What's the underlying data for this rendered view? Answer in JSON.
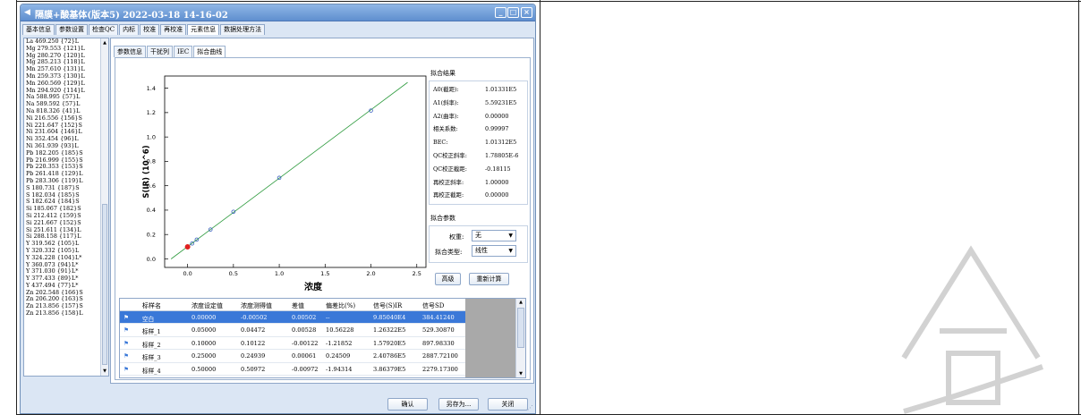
{
  "window": {
    "title": "隔膜+酸基体(版本5) 2022-03-18 14-16-02",
    "title_icon": "app-icon",
    "controls": [
      "minimize",
      "maximize",
      "close"
    ]
  },
  "top_tabs": [
    {
      "label": "基本信息"
    },
    {
      "label": "参数设置"
    },
    {
      "label": "检查QC"
    },
    {
      "label": "内标"
    },
    {
      "label": "校准"
    },
    {
      "label": "再校准"
    },
    {
      "label": "元素信息",
      "active": true
    },
    {
      "label": "数据处理方法"
    }
  ],
  "element_list": {
    "selected_index": 48,
    "items": [
      "La 469.250 {72}L",
      "Mg 279.553 {121}L",
      "Mg 280.270 {120}L",
      "Mg 285.213 {118}L",
      "Mn 257.610 {131}L",
      "Mn 259.373 {130}L",
      "Mn 260.569 {129}L",
      "Mn 294.920 {114}L",
      "Na 588.995 {57}L",
      "Na 589.592 {57}L",
      "Na 818.326 {41}L",
      "Ni 216.556 {156}S",
      "Ni 221.647 {152}S",
      "Ni 231.604 {146}L",
      "Ni 352.454 {96}L",
      "Ni 361.939 {93}L",
      "Pb 182.205 {185}S",
      "Pb 216.999 {155}S",
      "Pb 220.353 {153}S",
      "Pb 261.418 {129}L",
      "Pb 283.306 {119}L",
      "S 180.731 {187}S",
      "S 182.034 {185}S",
      "S 182.624 {184}S",
      "Si 185.067 {182}S",
      "Si 212.412 {159}S",
      "Si 221.667 {152}S",
      "Si 251.611 {134}L",
      "Si 288.158 {117}L",
      "Y 319.562 {105}L",
      "Y 320.332 {105}L",
      "Y 324.228 {104}L*",
      "Y 360.073 {94}L*",
      "Y 371.030 {91}L*",
      "Y 377.433 {89}L*",
      "Y 437.494 {77}L*",
      "Zn 202.548 {166}S",
      "Zn 206.200 {163}S",
      "Zn 213.856 {157}S",
      "Zn 213.856 {158}L"
    ]
  },
  "sub_tabs": [
    {
      "label": "参数信息"
    },
    {
      "label": "干扰列"
    },
    {
      "label": "IEC"
    },
    {
      "label": "拟合曲线",
      "active": true
    }
  ],
  "chart_data": {
    "type": "scatter",
    "title": "",
    "xlabel": "浓度",
    "ylabel": "S(IR) (10^6)",
    "xlim": [
      -0.25,
      2.6
    ],
    "ylim": [
      -0.07,
      1.5
    ],
    "x_ticks": [
      "0.0",
      "0.5",
      "1.0",
      "1.5",
      "2.0",
      "2.5"
    ],
    "x_tick_values": [
      0,
      0.5,
      1.0,
      1.5,
      2.0,
      2.5
    ],
    "y_ticks": [
      "0.0",
      "0.2",
      "0.4",
      "0.6",
      "0.8",
      "1.0",
      "1.2",
      "1.4"
    ],
    "y_tick_values": [
      0,
      0.2,
      0.4,
      0.6,
      0.8,
      1.0,
      1.2,
      1.4
    ],
    "grid": false,
    "fit_line": {
      "x": [
        -0.18,
        2.4
      ],
      "y": [
        -0.0003,
        1.4477
      ],
      "color": "#2e9b3e"
    },
    "series": [
      {
        "x": [
          0.05,
          0.1,
          0.25,
          0.5,
          1.0,
          2.0
        ],
        "y": [
          0.1263,
          0.1579,
          0.2408,
          0.3864,
          0.665,
          1.2166
        ],
        "color": "#3a5fbf",
        "marker": "open-circle"
      },
      {
        "x": [
          0.0
        ],
        "y": [
          0.0985
        ],
        "color": "#e02020",
        "marker": "filled-circle"
      }
    ]
  },
  "fit_results": {
    "title": "拟合结果",
    "rows": [
      {
        "label": "A0(截距):",
        "value": "1.01331E5"
      },
      {
        "label": "A1(斜率):",
        "value": "5.59231E5"
      },
      {
        "label": "A2(曲率):",
        "value": "0.00000"
      },
      {
        "label": "相关系数:",
        "value": "0.99997"
      },
      {
        "label": "BEC:",
        "value": "1.01312E5"
      },
      {
        "label": "QC校正斜率:",
        "value": "1.78805E-6"
      },
      {
        "label": "QC校正截距:",
        "value": "-0.18115"
      },
      {
        "label": "再校正斜率:",
        "value": "1.00000"
      },
      {
        "label": "再校正截距:",
        "value": "0.00000"
      }
    ]
  },
  "fit_params": {
    "title": "拟合参数",
    "weight_label": "权重:",
    "weight_value": "无",
    "type_label": "拟合类型:",
    "type_value": "线性"
  },
  "buttons": {
    "advanced": "高级",
    "recalc": "重新计算",
    "ok": "确认",
    "save_as": "另存为...",
    "close": "关闭"
  },
  "table": {
    "columns": [
      "标样名",
      "浓度设定值",
      "浓度测得值",
      "差值",
      "偏差比(%)",
      "信号(S)IR",
      "信号SD"
    ],
    "selected_row": 0,
    "rows": [
      [
        "空白",
        "0.00000",
        "-0.00502",
        "0.00502",
        "--",
        "9.85040E4",
        "384.41240"
      ],
      [
        "标样_1",
        "0.05000",
        "0.04472",
        "0.00528",
        "10.56228",
        "1.26322E5",
        "529.30870"
      ],
      [
        "标样_2",
        "0.10000",
        "0.10122",
        "-0.00122",
        "-1.21852",
        "1.57920E5",
        "897.98330"
      ],
      [
        "标样_3",
        "0.25000",
        "0.24939",
        "0.00061",
        "0.24509",
        "2.40786E5",
        "2887.72100"
      ],
      [
        "标样_4",
        "0.50000",
        "0.50972",
        "-0.00972",
        "-1.94314",
        "3.86379E5",
        "2279.17300"
      ]
    ]
  }
}
